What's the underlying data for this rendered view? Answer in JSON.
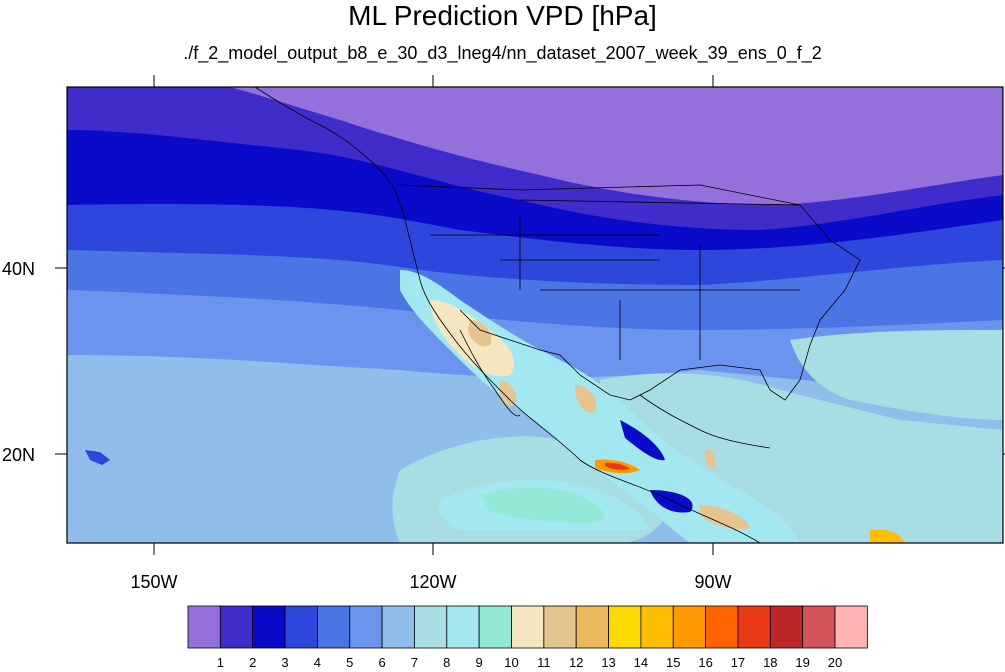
{
  "title": "ML Prediction VPD [hPa]",
  "subtitle": "./f_2_model_output_b8_e_30_d3_lneg4/nn_dataset_2007_week_39_ens_0_f_2",
  "axes": {
    "lat_labels": [
      "40N",
      "20N"
    ],
    "lon_labels": [
      "150W",
      "120W",
      "90W"
    ]
  },
  "colorbar": {
    "labels": [
      "1",
      "2",
      "3",
      "4",
      "5",
      "6",
      "7",
      "8",
      "9",
      "10",
      "11",
      "12",
      "13",
      "14",
      "15",
      "16",
      "17",
      "18",
      "19",
      "20"
    ],
    "colors": [
      "#9370DB",
      "#3F2CCB",
      "#0A0ACB",
      "#2D46DC",
      "#4B75E5",
      "#6C94EE",
      "#91BDEB",
      "#A8DDE4",
      "#A3E8F0",
      "#93E8D8",
      "#F5E6C0",
      "#E6C490",
      "#EBB85C",
      "#FDDA00",
      "#FFBF00",
      "#FF9A00",
      "#FF6400",
      "#E83A15",
      "#BE2727",
      "#D25557",
      "#FFB4B4"
    ]
  },
  "chart_data": {
    "type": "heatmap",
    "title": "ML Prediction VPD [hPa]",
    "subtitle": "./f_2_model_output_b8_e_30_d3_lneg4/nn_dataset_2007_week_39_ens_0_f_2",
    "xlabel": "",
    "ylabel": "",
    "x_range": [
      -160,
      -61
    ],
    "y_range": [
      10,
      59
    ],
    "x_ticks": [
      "150W",
      "120W",
      "90W"
    ],
    "y_ticks": [
      "40N",
      "20N"
    ],
    "levels": [
      1,
      2,
      3,
      4,
      5,
      6,
      7,
      8,
      9,
      10,
      11,
      12,
      13,
      14,
      15,
      16,
      17,
      18,
      19,
      20
    ],
    "colorbar": "bottom, horizontal"
  }
}
